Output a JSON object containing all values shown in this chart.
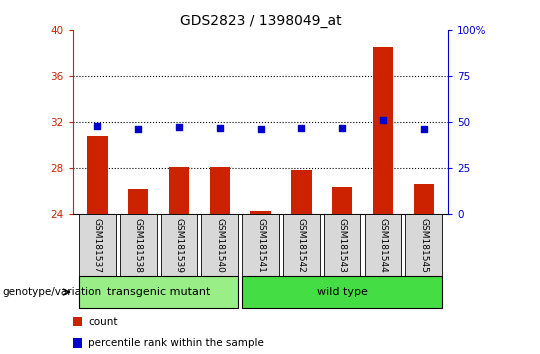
{
  "title": "GDS2823 / 1398049_at",
  "samples": [
    "GSM181537",
    "GSM181538",
    "GSM181539",
    "GSM181540",
    "GSM181541",
    "GSM181542",
    "GSM181543",
    "GSM181544",
    "GSM181545"
  ],
  "bar_values": [
    30.8,
    26.2,
    28.1,
    28.1,
    24.3,
    27.8,
    26.4,
    38.5,
    26.6
  ],
  "dot_values": [
    31.7,
    31.4,
    31.6,
    31.5,
    31.4,
    31.5,
    31.5,
    32.2,
    31.4
  ],
  "ylim_left": [
    24,
    40
  ],
  "ylim_right": [
    0,
    100
  ],
  "yticks_left": [
    24,
    28,
    32,
    36,
    40
  ],
  "yticks_right": [
    0,
    25,
    50,
    75,
    100
  ],
  "ytick_labels_right": [
    "0",
    "25",
    "50",
    "75",
    "100%"
  ],
  "bar_color": "#cc2200",
  "dot_color": "#0000cc",
  "bar_bottom": 24,
  "groups": [
    {
      "label": "transgenic mutant",
      "start": 0,
      "end": 3,
      "color": "#99ee88"
    },
    {
      "label": "wild type",
      "start": 4,
      "end": 8,
      "color": "#44dd44"
    }
  ],
  "group_label": "genotype/variation",
  "legend_items": [
    {
      "color": "#cc2200",
      "label": "count"
    },
    {
      "color": "#0000cc",
      "label": "percentile rank within the sample"
    }
  ],
  "axis_color_left": "#cc2200",
  "axis_color_right": "#0000cc",
  "dotted_lines": [
    28,
    32,
    36
  ]
}
